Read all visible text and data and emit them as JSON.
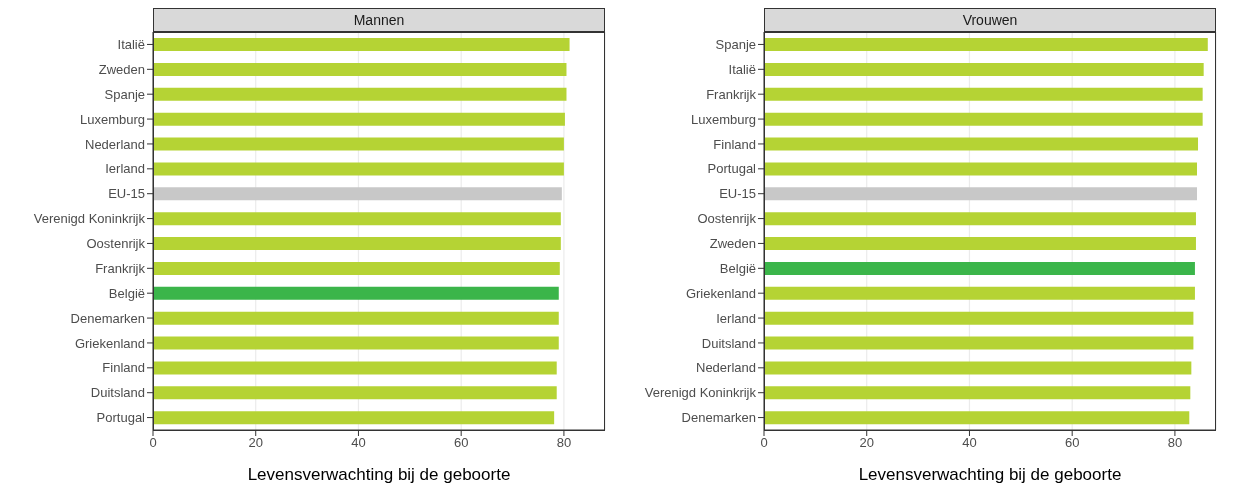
{
  "chart_data": [
    {
      "type": "bar",
      "orientation": "horizontal",
      "title": "Mannen",
      "xlabel": "Levensverwachting bij de geboorte",
      "categories": [
        "Italië",
        "Zweden",
        "Spanje",
        "Luxemburg",
        "Nederland",
        "Ierland",
        "EU-15",
        "Verenigd Koninkrijk",
        "Oostenrijk",
        "Frankrijk",
        "België",
        "Denemarken",
        "Griekenland",
        "Finland",
        "Duitsland",
        "Portugal"
      ],
      "values": [
        81.1,
        80.5,
        80.5,
        80.2,
        80.0,
        80.0,
        79.6,
        79.4,
        79.4,
        79.2,
        79.0,
        79.0,
        79.0,
        78.6,
        78.6,
        78.1
      ],
      "colors": [
        "#b5d334",
        "#b5d334",
        "#b5d334",
        "#b5d334",
        "#b5d334",
        "#b5d334",
        "#c8c8c8",
        "#b5d334",
        "#b5d334",
        "#b5d334",
        "#3bb54a",
        "#b5d334",
        "#b5d334",
        "#b5d334",
        "#b5d334",
        "#b5d334"
      ],
      "xlim": [
        0,
        88
      ],
      "xticks": [
        0,
        20,
        40,
        60,
        80
      ],
      "grid": "x"
    },
    {
      "type": "bar",
      "orientation": "horizontal",
      "title": "Vrouwen",
      "xlabel": "Levensverwachting bij de geboorte",
      "categories": [
        "Spanje",
        "Italië",
        "Frankrijk",
        "Luxemburg",
        "Finland",
        "Portugal",
        "EU-15",
        "Oostenrijk",
        "Zweden",
        "België",
        "Griekenland",
        "Ierland",
        "Duitsland",
        "Nederland",
        "Verenigd Koninkrijk",
        "Denemarken"
      ],
      "values": [
        86.4,
        85.6,
        85.4,
        85.4,
        84.5,
        84.3,
        84.3,
        84.1,
        84.1,
        83.9,
        83.9,
        83.6,
        83.6,
        83.2,
        83.0,
        82.8
      ],
      "colors": [
        "#b5d334",
        "#b5d334",
        "#b5d334",
        "#b5d334",
        "#b5d334",
        "#b5d334",
        "#c8c8c8",
        "#b5d334",
        "#b5d334",
        "#3bb54a",
        "#b5d334",
        "#b5d334",
        "#b5d334",
        "#b5d334",
        "#b5d334",
        "#b5d334"
      ],
      "xlim": [
        0,
        88
      ],
      "xticks": [
        0,
        20,
        40,
        60,
        80
      ],
      "grid": "x"
    }
  ]
}
